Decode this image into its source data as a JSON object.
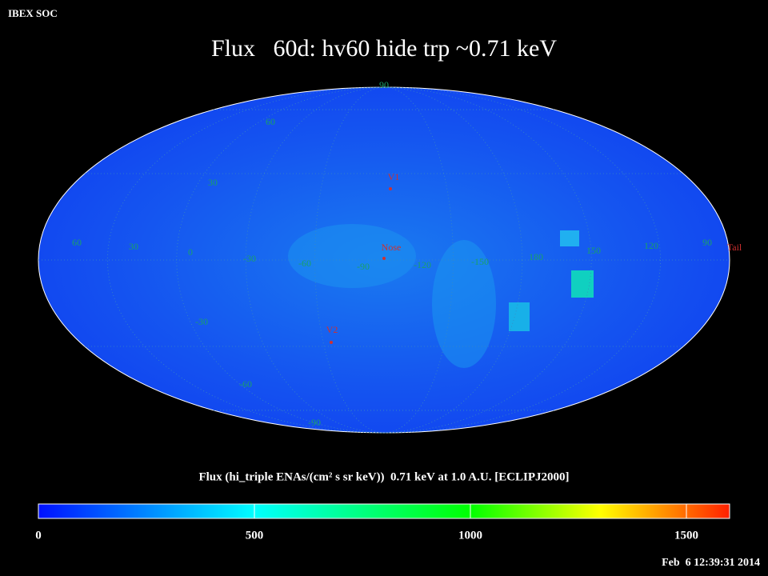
{
  "header": {
    "source": "IBEX SOC",
    "title": "Flux   60d: hv60 hide trp ~0.71 keV",
    "timestamp": "Feb  6 12:39:31 2014"
  },
  "map": {
    "grid_labels": [
      "90",
      "60",
      "30",
      "60",
      "30",
      "0",
      "-30",
      "-60",
      "-90",
      "-120",
      "-150",
      "180",
      "150",
      "120",
      "90",
      "-30",
      "-60",
      "-90"
    ],
    "markers": [
      "V1",
      "Nose",
      "V2",
      "Tail"
    ]
  },
  "colorbar": {
    "label": "Flux (hi_triple ENAs/(cm² s sr keV))  0.71 keV at 1.0 A.U. [ECLIPJ2000]",
    "range": [
      0,
      1600
    ],
    "ticks": [
      0,
      500,
      1000,
      1500
    ],
    "stops": [
      {
        "value": 0,
        "color": "#0010ff"
      },
      {
        "value": 500,
        "color": "#00ffff"
      },
      {
        "value": 1000,
        "color": "#00ff00"
      },
      {
        "value": 1300,
        "color": "#ffff00"
      },
      {
        "value": 1600,
        "color": "#ff2000"
      }
    ]
  }
}
